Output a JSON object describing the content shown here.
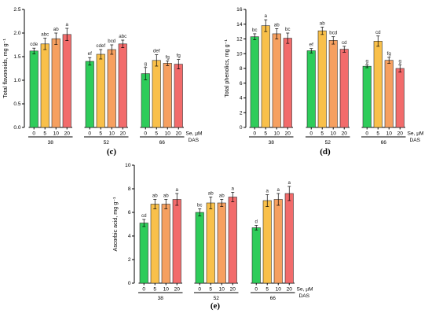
{
  "colors": {
    "0": "#2ecc5a",
    "5": "#f9c04a",
    "10": "#f6a060",
    "20": "#f26b6b"
  },
  "legend": {
    "se_label": "Se, µM",
    "das_label": "DAS"
  },
  "chart_data": [
    {
      "panel": "(c)",
      "type": "bar",
      "ylabel": "Total flavonoids, mg g⁻¹",
      "ylim": [
        0,
        2.5
      ],
      "yticks": [
        0.0,
        0.5,
        1.0,
        1.5,
        2.0,
        2.5
      ],
      "ytick_labels": [
        "0.0",
        "0.5",
        "1.0",
        "1.5",
        "2.0",
        "2.5"
      ],
      "se_levels": [
        "0",
        "5",
        "10",
        "20"
      ],
      "groups": [
        {
          "das": "38",
          "values": [
            1.62,
            1.77,
            1.88,
            1.97
          ],
          "errors": [
            0.06,
            0.12,
            0.12,
            0.13
          ],
          "letters": [
            "cde",
            "abc",
            "ab",
            "a"
          ]
        },
        {
          "das": "52",
          "values": [
            1.4,
            1.55,
            1.65,
            1.77
          ],
          "errors": [
            0.08,
            0.1,
            0.1,
            0.08
          ],
          "letters": [
            "ef",
            "cdef",
            "bcd",
            "abc"
          ]
        },
        {
          "das": "66",
          "values": [
            1.14,
            1.42,
            1.36,
            1.34
          ],
          "errors": [
            0.13,
            0.12,
            0.05,
            0.1
          ],
          "letters": [
            "g",
            "def",
            "fg",
            "fg"
          ]
        }
      ]
    },
    {
      "panel": "(d)",
      "type": "bar",
      "ylabel": "Total phenolics, mg g⁻¹",
      "ylim": [
        0,
        16
      ],
      "yticks": [
        0,
        2,
        4,
        6,
        8,
        10,
        12,
        14,
        16
      ],
      "ytick_labels": [
        "0",
        "2",
        "4",
        "6",
        "8",
        "10",
        "12",
        "14",
        "16"
      ],
      "se_levels": [
        "0",
        "5",
        "10",
        "20"
      ],
      "groups": [
        {
          "das": "38",
          "values": [
            12.3,
            13.8,
            12.7,
            12.1
          ],
          "errors": [
            0.4,
            0.8,
            0.7,
            0.7
          ],
          "letters": [
            "bc",
            "a",
            "ab",
            "bc"
          ]
        },
        {
          "das": "52",
          "values": [
            10.4,
            13.1,
            11.8,
            10.6
          ],
          "errors": [
            0.3,
            0.5,
            0.5,
            0.4
          ],
          "letters": [
            "ef",
            "ab",
            "bcd",
            "cd"
          ]
        },
        {
          "das": "66",
          "values": [
            8.3,
            11.7,
            9.1,
            8.0
          ],
          "errors": [
            0.2,
            0.7,
            0.4,
            0.5
          ],
          "letters": [
            "g",
            "cd",
            "fg",
            "g"
          ]
        }
      ]
    },
    {
      "panel": "(e)",
      "type": "bar",
      "ylabel": "Ascorbic acid, mg g⁻¹",
      "ylim": [
        0,
        10
      ],
      "yticks": [
        0,
        2,
        4,
        6,
        8,
        10
      ],
      "ytick_labels": [
        "0",
        "2",
        "4",
        "6",
        "8",
        "10"
      ],
      "se_levels": [
        "0",
        "5",
        "10",
        "20"
      ],
      "groups": [
        {
          "das": "38",
          "values": [
            5.1,
            6.7,
            6.7,
            7.1
          ],
          "errors": [
            0.3,
            0.4,
            0.4,
            0.5
          ],
          "letters": [
            "cd",
            "ab",
            "ab",
            "a"
          ]
        },
        {
          "das": "52",
          "values": [
            6.0,
            6.8,
            6.8,
            7.3
          ],
          "errors": [
            0.3,
            0.5,
            0.3,
            0.4
          ],
          "letters": [
            "bc",
            "ab",
            "ab",
            "a"
          ]
        },
        {
          "das": "66",
          "values": [
            4.7,
            7.0,
            7.1,
            7.6
          ],
          "errors": [
            0.2,
            0.5,
            0.5,
            0.6
          ],
          "letters": [
            "d",
            "a",
            "a",
            "a"
          ]
        }
      ]
    }
  ]
}
